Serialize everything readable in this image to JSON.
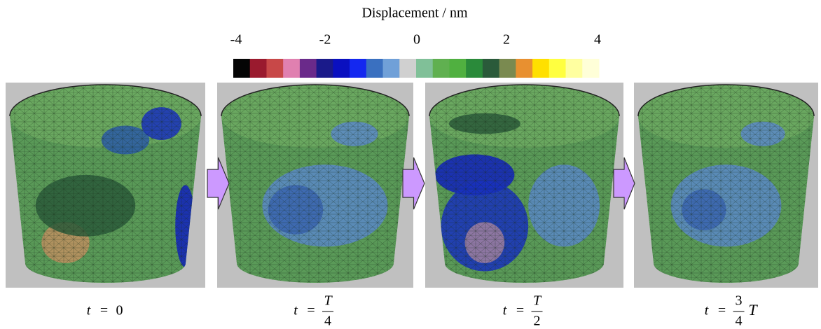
{
  "colorbar": {
    "title": "Displacement / nm",
    "ticks": [
      "-4",
      "-2",
      "0",
      "2",
      "4"
    ],
    "colors": [
      "#050505",
      "#9a1a2e",
      "#c84848",
      "#e080b0",
      "#6a2a8a",
      "#1a1a8a",
      "#0a10c0",
      "#1428f0",
      "#3a70c0",
      "#70a0d8",
      "#d0d0d0",
      "#80c098",
      "#60b050",
      "#50b040",
      "#2a8a3a",
      "#2a5a3a",
      "#7a8a50",
      "#e89030",
      "#ffe000",
      "#ffff40",
      "#ffffa0",
      "#ffffd8"
    ]
  },
  "panels": [
    {
      "caption": {
        "variable": "t",
        "equals": "=",
        "value": "0"
      }
    },
    {
      "caption": {
        "variable": "t",
        "equals": "=",
        "numerator": "T",
        "denominator": "4"
      }
    },
    {
      "caption": {
        "variable": "t",
        "equals": "=",
        "numerator": "T",
        "denominator": "2"
      }
    },
    {
      "caption": {
        "variable": "t",
        "equals": "=",
        "numerator": "3",
        "denominator": "4",
        "suffix": "T"
      }
    }
  ]
}
